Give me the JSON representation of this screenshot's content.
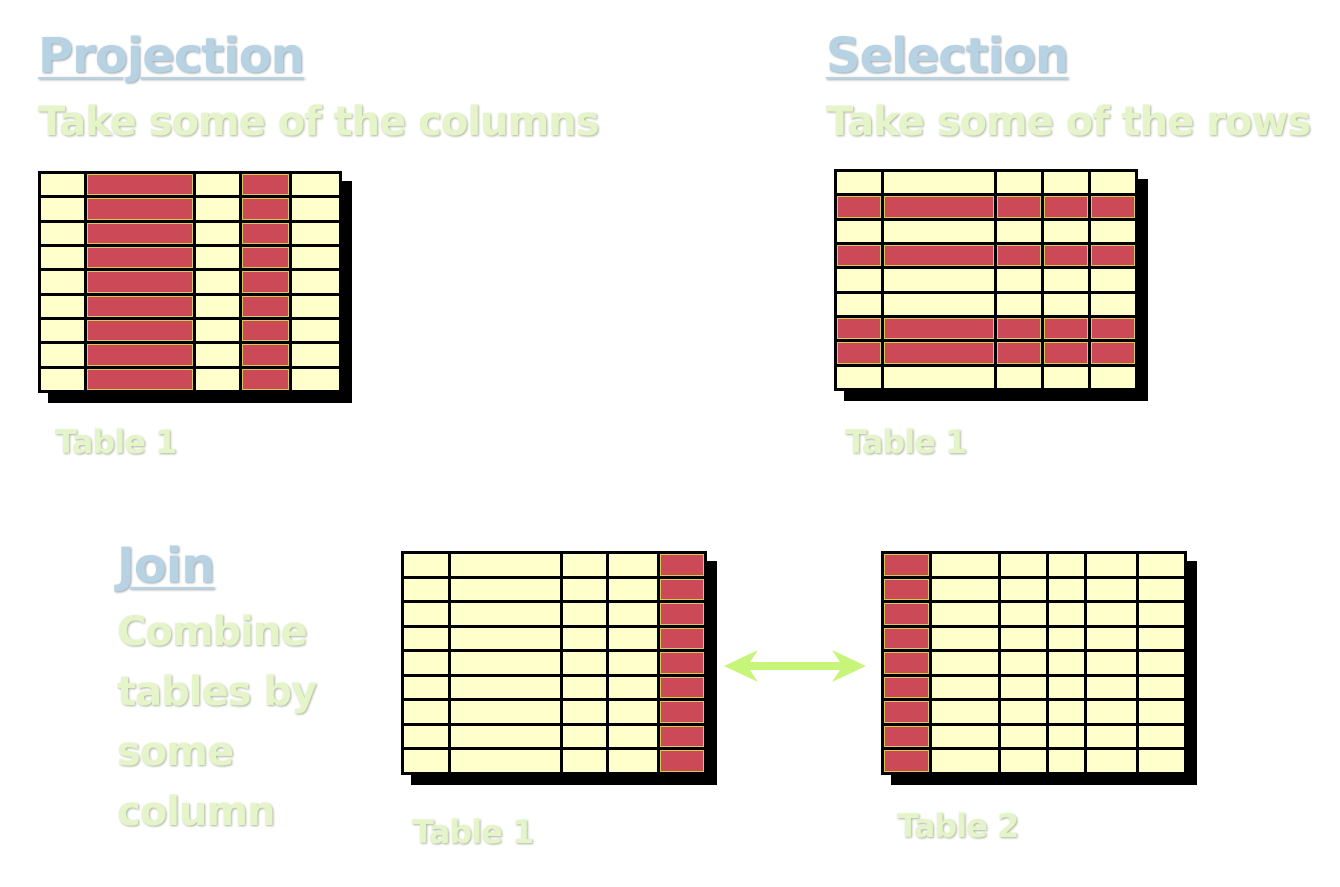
{
  "projection": {
    "title": "Projection",
    "description": "Take some of the columns",
    "table_label": "Table 1",
    "table": {
      "rows": 9,
      "cols": 5,
      "col_weights": [
        1,
        2.5,
        1,
        1.1,
        1.1
      ],
      "highlight_cols": [
        1,
        3
      ],
      "highlight_rows": []
    }
  },
  "selection": {
    "title": "Selection",
    "description": "Take some of the rows",
    "table_label": "Table 1",
    "table": {
      "rows": 9,
      "cols": 5,
      "col_weights": [
        1,
        2.5,
        1,
        1,
        1
      ],
      "highlight_cols": [],
      "highlight_rows": [
        1,
        3,
        6,
        7
      ]
    }
  },
  "join": {
    "title": "Join",
    "description": "Combine tables by some column",
    "table1_label": "Table 1",
    "table2_label": "Table 2",
    "table1": {
      "rows": 9,
      "cols": 5,
      "col_weights": [
        1,
        2.5,
        1,
        1.1,
        1
      ],
      "highlight_cols": [
        4
      ],
      "highlight_rows": []
    },
    "table2": {
      "rows": 9,
      "cols": 6,
      "col_weights": [
        1,
        1.5,
        1,
        0.8,
        1.1,
        1
      ],
      "highlight_cols": [
        0
      ],
      "highlight_rows": []
    },
    "arrow_color": "#c6f57a"
  },
  "colors": {
    "cell": "#ffffcc",
    "highlight": "#cc4a57",
    "title": "#b7d2e3",
    "text": "#e5f4c9"
  }
}
